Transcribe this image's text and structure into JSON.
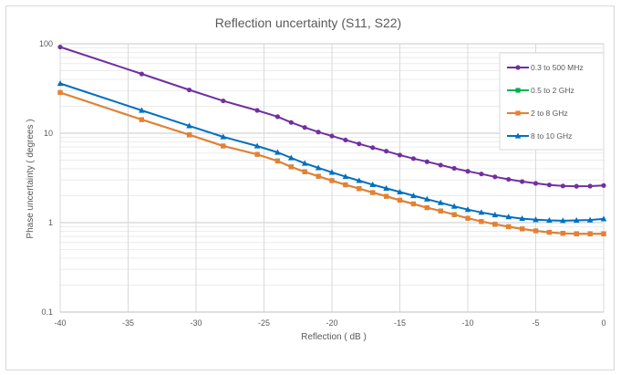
{
  "chart_data": {
    "type": "line",
    "title": "Reflection uncertainty (S11, S22)",
    "xlabel": "Reflection ( dB )",
    "ylabel": "Phase uncertainty ( degrees )",
    "xlim": [
      -40,
      0
    ],
    "ylim": [
      0.1,
      100
    ],
    "yscale": "log",
    "grid": true,
    "legend_position": "right",
    "x_ticks": [
      "-40",
      "-35",
      "-30",
      "-25",
      "-20",
      "-15",
      "-10",
      "-5",
      "0"
    ],
    "y_ticks": [
      "0.1",
      "1",
      "10",
      "100"
    ],
    "series": [
      {
        "name": "0.3 to 500 MHz",
        "color": "#7030a0",
        "marker": "circle",
        "points": [
          [
            -40,
            92
          ],
          [
            -34,
            46
          ],
          [
            -30.5,
            30.5
          ],
          [
            -28,
            23
          ],
          [
            -25.5,
            18
          ],
          [
            -24,
            15.3
          ],
          [
            -23,
            13.2
          ],
          [
            -22,
            11.6
          ],
          [
            -21,
            10.3
          ],
          [
            -20,
            9.3
          ],
          [
            -19,
            8.4
          ],
          [
            -18,
            7.6
          ],
          [
            -17,
            6.9
          ],
          [
            -16,
            6.3
          ],
          [
            -15,
            5.7
          ],
          [
            -14,
            5.2
          ],
          [
            -13,
            4.8
          ],
          [
            -12,
            4.4
          ],
          [
            -11,
            4.05
          ],
          [
            -10,
            3.75
          ],
          [
            -9,
            3.5
          ],
          [
            -8,
            3.25
          ],
          [
            -7,
            3.05
          ],
          [
            -6,
            2.88
          ],
          [
            -5,
            2.75
          ],
          [
            -4,
            2.64
          ],
          [
            -3,
            2.57
          ],
          [
            -2,
            2.55
          ],
          [
            -1,
            2.56
          ],
          [
            0,
            2.6
          ]
        ]
      },
      {
        "name": "0.5 to 2 GHz",
        "color": "#00b050",
        "marker": "square",
        "points": [
          [
            -40,
            28.5
          ],
          [
            -34,
            14.2
          ],
          [
            -30.5,
            9.6
          ],
          [
            -28,
            7.2
          ],
          [
            -25.5,
            5.8
          ],
          [
            -24,
            4.9
          ],
          [
            -23,
            4.2
          ],
          [
            -22,
            3.7
          ],
          [
            -21,
            3.3
          ],
          [
            -20,
            2.95
          ],
          [
            -19,
            2.65
          ],
          [
            -18,
            2.4
          ],
          [
            -17,
            2.17
          ],
          [
            -16,
            1.97
          ],
          [
            -15,
            1.78
          ],
          [
            -14,
            1.62
          ],
          [
            -13,
            1.47
          ],
          [
            -12,
            1.35
          ],
          [
            -11,
            1.23
          ],
          [
            -10,
            1.12
          ],
          [
            -9,
            1.03
          ],
          [
            -8,
            0.96
          ],
          [
            -7,
            0.9
          ],
          [
            -6,
            0.85
          ],
          [
            -5,
            0.81
          ],
          [
            -4,
            0.78
          ],
          [
            -3,
            0.76
          ],
          [
            -2,
            0.75
          ],
          [
            -1,
            0.75
          ],
          [
            0,
            0.75
          ]
        ]
      },
      {
        "name": "2 to 8 GHz",
        "color": "#ed7d31",
        "marker": "square",
        "points": [
          [
            -40,
            28.5
          ],
          [
            -34,
            14.2
          ],
          [
            -30.5,
            9.6
          ],
          [
            -28,
            7.2
          ],
          [
            -25.5,
            5.8
          ],
          [
            -24,
            4.9
          ],
          [
            -23,
            4.2
          ],
          [
            -22,
            3.7
          ],
          [
            -21,
            3.3
          ],
          [
            -20,
            2.95
          ],
          [
            -19,
            2.65
          ],
          [
            -18,
            2.4
          ],
          [
            -17,
            2.17
          ],
          [
            -16,
            1.97
          ],
          [
            -15,
            1.78
          ],
          [
            -14,
            1.62
          ],
          [
            -13,
            1.47
          ],
          [
            -12,
            1.35
          ],
          [
            -11,
            1.23
          ],
          [
            -10,
            1.12
          ],
          [
            -9,
            1.03
          ],
          [
            -8,
            0.96
          ],
          [
            -7,
            0.9
          ],
          [
            -6,
            0.85
          ],
          [
            -5,
            0.81
          ],
          [
            -4,
            0.78
          ],
          [
            -3,
            0.76
          ],
          [
            -2,
            0.75
          ],
          [
            -1,
            0.75
          ],
          [
            0,
            0.75
          ]
        ]
      },
      {
        "name": "8 to 10 GHz",
        "color": "#0070c0",
        "marker": "triangle",
        "points": [
          [
            -40,
            36
          ],
          [
            -34,
            18
          ],
          [
            -30.5,
            12.1
          ],
          [
            -28,
            9.1
          ],
          [
            -25.5,
            7.2
          ],
          [
            -24,
            6.1
          ],
          [
            -23,
            5.3
          ],
          [
            -22,
            4.6
          ],
          [
            -21,
            4.1
          ],
          [
            -20,
            3.65
          ],
          [
            -19,
            3.27
          ],
          [
            -18,
            2.95
          ],
          [
            -17,
            2.66
          ],
          [
            -16,
            2.42
          ],
          [
            -15,
            2.2
          ],
          [
            -14,
            2.0
          ],
          [
            -13,
            1.83
          ],
          [
            -12,
            1.67
          ],
          [
            -11,
            1.52
          ],
          [
            -10,
            1.4
          ],
          [
            -9,
            1.3
          ],
          [
            -8,
            1.22
          ],
          [
            -7,
            1.16
          ],
          [
            -6,
            1.11
          ],
          [
            -5,
            1.08
          ],
          [
            -4,
            1.06
          ],
          [
            -3,
            1.05
          ],
          [
            -2,
            1.06
          ],
          [
            -1,
            1.07
          ],
          [
            0,
            1.1
          ]
        ]
      }
    ]
  }
}
